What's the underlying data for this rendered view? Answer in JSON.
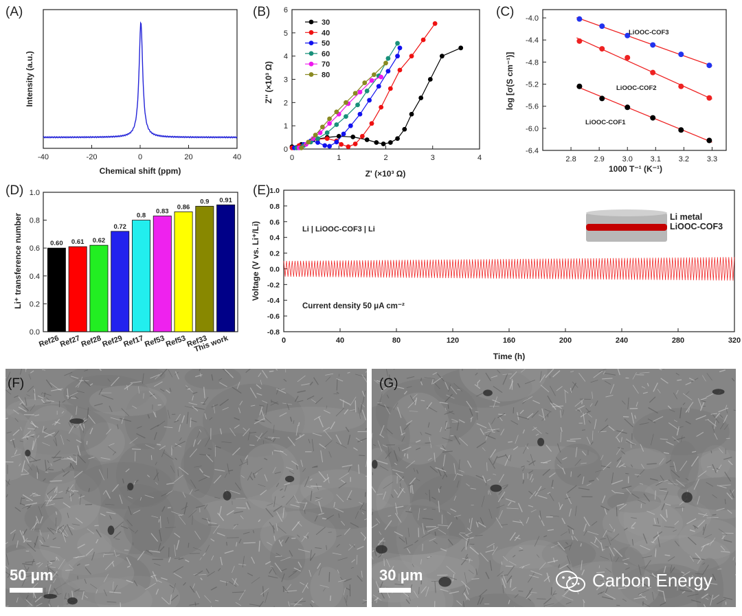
{
  "panel_labels": {
    "A": "(A)",
    "B": "(B)",
    "C": "(C)",
    "D": "(D)",
    "E": "(E)",
    "F": "(F)",
    "G": "(G)"
  },
  "chart_data": [
    {
      "id": "A",
      "type": "line",
      "title": "",
      "xlabel": "Chemical shift (ppm)",
      "ylabel": "Intensity (a.u.)",
      "xlim": [
        -40,
        40
      ],
      "xticks": [
        "-40",
        "-20",
        "0",
        "20",
        "40"
      ],
      "peak_center_ppm": 0.3,
      "color": "#2323d8"
    },
    {
      "id": "B",
      "type": "scatter",
      "xlabel": "Z' (×10³ Ω)",
      "ylabel": "Z'' (×10³ Ω)",
      "xlim": [
        0,
        4
      ],
      "ylim": [
        0,
        6
      ],
      "xticks": [
        "0",
        "1",
        "2",
        "3",
        "4"
      ],
      "yticks": [
        "0",
        "1",
        "2",
        "3",
        "4",
        "5",
        "6"
      ],
      "series": [
        {
          "name": "30",
          "color": "#000000",
          "x": [
            0.0,
            0.2,
            0.45,
            0.75,
            1.0,
            1.3,
            1.6,
            1.8,
            1.95,
            2.1,
            2.25,
            2.4,
            2.55,
            2.75,
            2.95,
            3.2,
            3.6
          ],
          "y": [
            0.1,
            0.2,
            0.4,
            0.5,
            0.55,
            0.52,
            0.4,
            0.28,
            0.22,
            0.28,
            0.45,
            0.85,
            1.5,
            2.2,
            3.0,
            4.0,
            4.35
          ]
        },
        {
          "name": "40",
          "color": "#ee1111",
          "x": [
            0.0,
            0.15,
            0.35,
            0.55,
            0.75,
            0.95,
            1.05,
            1.2,
            1.35,
            1.5,
            1.7,
            1.9,
            2.1,
            2.3,
            2.55,
            2.8,
            3.05
          ],
          "y": [
            0.05,
            0.15,
            0.3,
            0.42,
            0.45,
            0.35,
            0.2,
            0.1,
            0.22,
            0.55,
            1.1,
            1.8,
            2.6,
            3.4,
            4.0,
            4.7,
            5.4
          ]
        },
        {
          "name": "50",
          "color": "#1111ee",
          "x": [
            0.05,
            0.25,
            0.4,
            0.55,
            0.7,
            0.8,
            0.95,
            1.1,
            1.25,
            1.45,
            1.65,
            1.85,
            2.05,
            2.25,
            2.3
          ],
          "y": [
            0.05,
            0.2,
            0.35,
            0.28,
            0.15,
            0.12,
            0.3,
            0.65,
            1.0,
            1.5,
            2.1,
            2.7,
            3.35,
            4.0,
            4.35
          ]
        },
        {
          "name": "60",
          "color": "#18907a",
          "x": [
            0.1,
            0.25,
            0.4,
            0.55,
            0.75,
            0.95,
            1.15,
            1.4,
            1.6,
            1.85,
            2.05,
            2.25
          ],
          "y": [
            0.05,
            0.15,
            0.3,
            0.45,
            0.7,
            1.05,
            1.4,
            1.9,
            2.5,
            3.15,
            3.9,
            4.55
          ]
        },
        {
          "name": "70",
          "color": "#ee18ee",
          "x": [
            0.15,
            0.3,
            0.45,
            0.6,
            0.8,
            1.0,
            1.2,
            1.45,
            1.7,
            1.9
          ],
          "y": [
            0.05,
            0.2,
            0.45,
            0.7,
            1.1,
            1.5,
            1.95,
            2.45,
            2.95,
            3.1
          ]
        },
        {
          "name": "80",
          "color": "#8a8a22",
          "x": [
            0.2,
            0.35,
            0.5,
            0.65,
            0.8,
            0.95,
            1.15,
            1.35,
            1.55,
            1.75,
            2.0
          ],
          "y": [
            0.05,
            0.3,
            0.6,
            0.95,
            1.3,
            1.6,
            2.0,
            2.4,
            2.85,
            3.2,
            3.7
          ]
        }
      ]
    },
    {
      "id": "C",
      "type": "scatter",
      "xlabel": "1000 T⁻¹ (K⁻¹)",
      "ylabel": "log [σ(S cm⁻¹)]",
      "xlim": [
        2.7,
        3.35
      ],
      "ylim": [
        -6.4,
        -3.85
      ],
      "xticks": [
        "2.8",
        "2.9",
        "3.0",
        "3.1",
        "3.2",
        "3.3"
      ],
      "yticks": [
        "-4.0",
        "-4.4",
        "-4.8",
        "-5.2",
        "-5.6",
        "-6.0",
        "-6.4"
      ],
      "fit_color": "#ee2222",
      "series": [
        {
          "name": "LiOOC-COF3",
          "color": "#2233ee",
          "x": [
            2.83,
            2.91,
            3.0,
            3.09,
            3.19,
            3.29
          ],
          "y": [
            -4.02,
            -4.15,
            -4.32,
            -4.49,
            -4.66,
            -4.86
          ]
        },
        {
          "name": "LiOOC-COF2",
          "color": "#ee2222",
          "x": [
            2.83,
            2.91,
            3.0,
            3.09,
            3.19,
            3.29
          ],
          "y": [
            -4.42,
            -4.56,
            -4.72,
            -4.99,
            -5.24,
            -5.45
          ]
        },
        {
          "name": "LiOOC-COF1",
          "color": "#000000",
          "x": [
            2.83,
            2.91,
            3.0,
            3.09,
            3.19,
            3.29
          ],
          "y": [
            -5.24,
            -5.46,
            -5.62,
            -5.81,
            -6.03,
            -6.22
          ]
        }
      ]
    },
    {
      "id": "D",
      "type": "bar",
      "ylabel": "Li⁺ transference number",
      "ylim": [
        0,
        1.0
      ],
      "yticks": [
        "0.0",
        "0.2",
        "0.4",
        "0.6",
        "0.8",
        "1.0"
      ],
      "categories": [
        "Ref26",
        "Ref27",
        "Ref28",
        "Ref29",
        "Ref17",
        "Ref53",
        "Ref53",
        "Ref33",
        "This work"
      ],
      "values": [
        0.6,
        0.61,
        0.62,
        0.72,
        0.8,
        0.83,
        0.86,
        0.9,
        0.91
      ],
      "value_labels": [
        "0.60",
        "0.61",
        "0.62",
        "0.72",
        "0.8",
        "0.83",
        "0.86",
        "0.9",
        "0.91"
      ],
      "colors": [
        "#000000",
        "#ff0000",
        "#22ee22",
        "#2222ee",
        "#22eeee",
        "#ee22ee",
        "#ffff00",
        "#888800",
        "#000088"
      ]
    },
    {
      "id": "E",
      "type": "line",
      "xlabel": "Time (h)",
      "ylabel": "Voltage (V vs. Li⁺/Li)",
      "xlim": [
        0,
        320
      ],
      "ylim": [
        -0.8,
        1.0
      ],
      "xticks": [
        "0",
        "40",
        "80",
        "120",
        "160",
        "200",
        "240",
        "280",
        "320"
      ],
      "yticks": [
        "1.0",
        "0.8",
        "0.6",
        "0.4",
        "0.2",
        "0.0",
        "-0.2",
        "-0.4",
        "-0.6",
        "-0.8"
      ],
      "amplitude_start": 0.1,
      "amplitude_end": 0.15,
      "color": "#ee1111",
      "cell_label": "Li | LiOOC-COF3 | Li",
      "current_label": "Current density 50 μA cm⁻²",
      "inset_labels": [
        "Li metal",
        "LiOOC-COF3"
      ]
    }
  ],
  "sem": {
    "F_scale": "50 μm",
    "G_scale": "30 μm"
  },
  "watermark": "Carbon Energy"
}
